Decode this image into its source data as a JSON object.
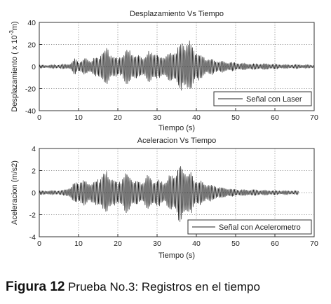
{
  "chart_data": [
    {
      "type": "line",
      "title": "Desplazamiento Vs Tiempo",
      "xlabel": "Tiempo (s)",
      "ylabel": "Desplazamiento  ( x 10",
      "ylabel_exp": "-3",
      "ylabel_unit": "m)",
      "xlim": [
        0,
        70
      ],
      "ylim": [
        -40,
        40
      ],
      "xticks": [
        "0",
        "10",
        "20",
        "30",
        "40",
        "50",
        "60",
        "70"
      ],
      "yticks": [
        "40",
        "20",
        "0",
        "-20",
        "-40"
      ],
      "grid": "dotted",
      "legend_position": "bottom-right",
      "series": [
        {
          "name": "Señal con Laser",
          "x": [
            0,
            2,
            5,
            8,
            9,
            10,
            12,
            13,
            15,
            16,
            17,
            18,
            19,
            20,
            21,
            22,
            23,
            25,
            27,
            28,
            29,
            30,
            31,
            33,
            34,
            35,
            36,
            37,
            38,
            39,
            40,
            41,
            42,
            44,
            46,
            48,
            50,
            54,
            58,
            62,
            66,
            70
          ],
          "envelope": [
            1.5,
            1.5,
            2,
            3,
            8,
            6,
            9,
            7,
            11,
            17,
            19,
            16,
            11,
            9,
            13,
            17,
            18,
            12,
            11,
            16,
            17,
            13,
            11,
            14,
            17,
            20,
            23,
            26,
            27,
            21,
            17,
            13,
            10,
            8,
            6,
            5,
            4,
            3,
            3,
            2,
            2,
            1.5
          ]
        }
      ]
    },
    {
      "type": "line",
      "title": "Aceleracion Vs Tiempo",
      "xlabel": "Tiempo (s)",
      "ylabel": "Aceleracion (m/s2)",
      "xlim": [
        0,
        70
      ],
      "ylim": [
        -4,
        4
      ],
      "xticks": [
        "0",
        "10",
        "20",
        "30",
        "40",
        "50",
        "60",
        "70"
      ],
      "yticks": [
        "4",
        "2",
        "0",
        "-2",
        "-4"
      ],
      "grid": "dotted",
      "legend_position": "bottom-right",
      "series": [
        {
          "name": "Señal con Acelerometro",
          "x": [
            0,
            3,
            6,
            8,
            9,
            10,
            12,
            14,
            15,
            16,
            17,
            18,
            19,
            20,
            21,
            22,
            23,
            25,
            26,
            27,
            28,
            30,
            32,
            34,
            35,
            36,
            37,
            38,
            39,
            40,
            42,
            44,
            46,
            48,
            50,
            54,
            58,
            62,
            66
          ],
          "envelope": [
            0.2,
            0.2,
            0.25,
            0.6,
            1.0,
            1.3,
            1.2,
            1.1,
            1.5,
            2.0,
            2.2,
            2.0,
            1.4,
            1.1,
            1.6,
            2.0,
            2.0,
            1.2,
            1.1,
            1.6,
            1.7,
            1.3,
            1.3,
            2.0,
            2.6,
            2.9,
            2.8,
            2.3,
            1.9,
            1.5,
            1.1,
            0.8,
            0.6,
            0.45,
            0.35,
            0.3,
            0.25,
            0.2,
            0.2
          ]
        }
      ]
    }
  ],
  "caption": {
    "label": "Figura 12",
    "text": "Prueba No.3: Registros en el tiempo"
  }
}
